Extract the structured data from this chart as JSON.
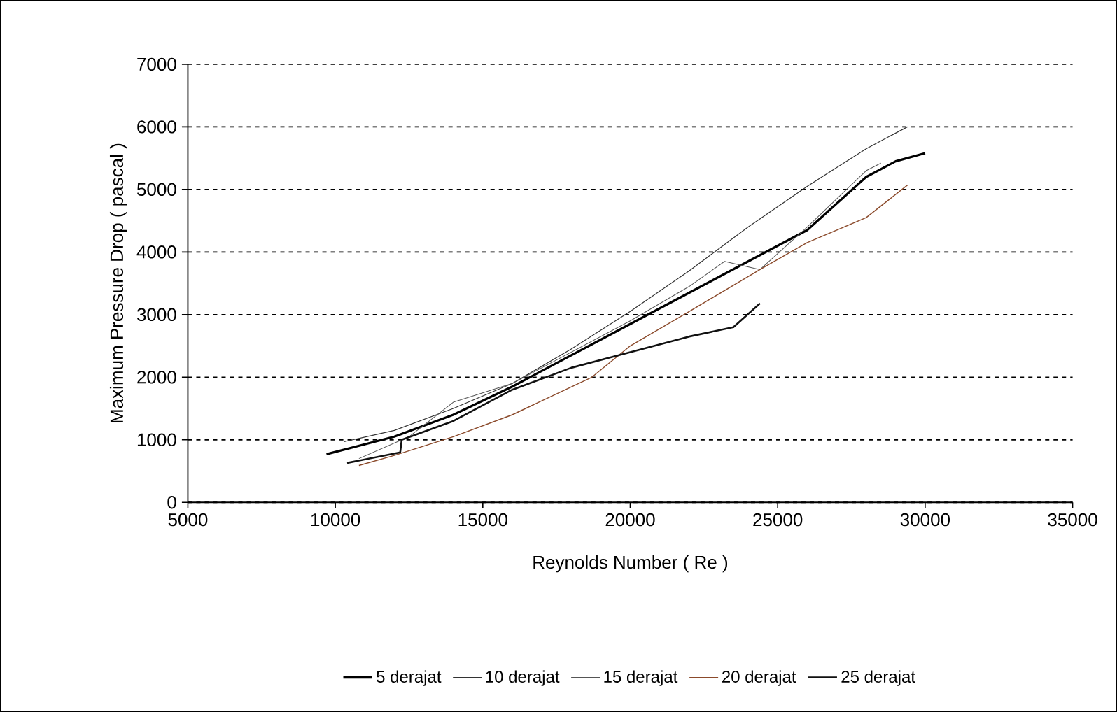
{
  "chart_data": {
    "type": "line",
    "xlabel": "Reynolds Number ( Re )",
    "ylabel": "Maximum Pressure Drop ( pascal )",
    "xlim": [
      5000,
      35000
    ],
    "ylim": [
      0,
      7000
    ],
    "xticks": [
      5000,
      10000,
      15000,
      20000,
      25000,
      30000,
      35000
    ],
    "yticks": [
      0,
      1000,
      2000,
      3000,
      4000,
      5000,
      6000,
      7000
    ],
    "grid": "y",
    "legend": "bottom",
    "marker": "none",
    "line_style": "solid",
    "series": [
      {
        "name": "5 derajat",
        "color": "#000000",
        "x": [
          9700,
          12000,
          14000,
          16000,
          18000,
          20000,
          22000,
          24000,
          26000,
          28000,
          29000,
          30000
        ],
        "values": [
          770,
          1050,
          1400,
          1850,
          2350,
          2850,
          3350,
          3850,
          4350,
          5200,
          5450,
          5580
        ]
      },
      {
        "name": "10 derajat",
        "color": "#333333",
        "x": [
          10300,
          12000,
          14000,
          16000,
          18000,
          20000,
          22000,
          24000,
          26000,
          28000,
          29400
        ],
        "values": [
          970,
          1150,
          1500,
          1900,
          2450,
          3050,
          3700,
          4400,
          5050,
          5650,
          6000
        ]
      },
      {
        "name": "15 derajat",
        "color": "#555555",
        "x": [
          10800,
          12500,
          14000,
          16000,
          18000,
          20000,
          22000,
          23200,
          24400,
          26000,
          28000,
          28500
        ],
        "values": [
          700,
          1050,
          1600,
          1900,
          2400,
          2900,
          3450,
          3850,
          3720,
          4400,
          5300,
          5420
        ]
      },
      {
        "name": "20 derajat",
        "color": "#8b4a2b",
        "x": [
          10800,
          12000,
          14000,
          16000,
          18700,
          20000,
          22000,
          24400,
          26000,
          28000,
          29400
        ],
        "values": [
          590,
          750,
          1050,
          1400,
          2000,
          2500,
          3050,
          3720,
          4150,
          4550,
          5070
        ]
      },
      {
        "name": "25 derajat",
        "color": "#111111",
        "x": [
          10400,
          12200,
          12250,
          14000,
          16000,
          18000,
          20000,
          22000,
          23500,
          24400
        ],
        "values": [
          630,
          800,
          1000,
          1300,
          1800,
          2150,
          2400,
          2650,
          2800,
          3180
        ]
      }
    ]
  }
}
